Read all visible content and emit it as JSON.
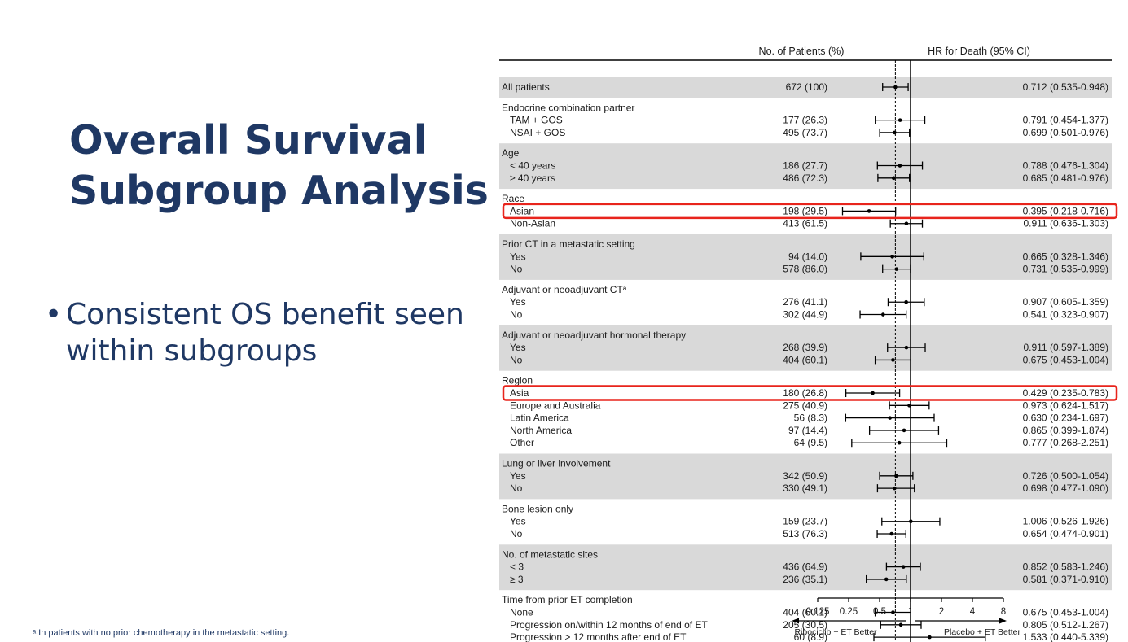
{
  "slide": {
    "title_line1": "Overall Survival",
    "title_line2": "Subgroup Analysis",
    "bullet": "Consistent OS benefit seen within subgroups",
    "footnote": "ᵃ In patients with no prior chemotherapy in the metastatic setting."
  },
  "colors": {
    "title": "#1f3864",
    "band": "#d9d9d9",
    "highlight": "#e8241c",
    "text": "#1a1a1a"
  },
  "chart_data": {
    "type": "forest",
    "headers": {
      "patients": "No. of Patients (%)",
      "hr": "HR for Death (95% CI)"
    },
    "x_axis": {
      "scale": "log",
      "ticks": [
        0.125,
        0.25,
        0.5,
        1,
        2,
        4,
        8
      ],
      "tick_labels": [
        "0.125",
        "0.25",
        "0.5",
        "1",
        "2",
        "4",
        "8"
      ],
      "reference_line": 1,
      "overall_dashed_line": 0.712
    },
    "favors_left": "Ribociclib + ET Better",
    "favors_right": "Placebo + ET Better",
    "groups": [
      {
        "label": "",
        "shaded": true,
        "rows": [
          {
            "label": "All patients",
            "n": "672 (100)",
            "hr": 0.712,
            "lo": 0.535,
            "hi": 0.948,
            "ci_text": "0.712 (0.535-0.948)"
          }
        ]
      },
      {
        "label": "Endocrine combination partner",
        "shaded": false,
        "rows": [
          {
            "label": "TAM + GOS",
            "n": "177 (26.3)",
            "hr": 0.791,
            "lo": 0.454,
            "hi": 1.377,
            "ci_text": "0.791 (0.454-1.377)"
          },
          {
            "label": "NSAI + GOS",
            "n": "495 (73.7)",
            "hr": 0.699,
            "lo": 0.501,
            "hi": 0.976,
            "ci_text": "0.699 (0.501-0.976)"
          }
        ]
      },
      {
        "label": "Age",
        "shaded": true,
        "rows": [
          {
            "label": "< 40 years",
            "n": "186 (27.7)",
            "hr": 0.788,
            "lo": 0.476,
            "hi": 1.304,
            "ci_text": "0.788 (0.476-1.304)"
          },
          {
            "label": "≥ 40 years",
            "n": "486 (72.3)",
            "hr": 0.685,
            "lo": 0.481,
            "hi": 0.976,
            "ci_text": "0.685 (0.481-0.976)"
          }
        ]
      },
      {
        "label": "Race",
        "shaded": false,
        "rows": [
          {
            "label": "Asian",
            "n": "198 (29.5)",
            "hr": 0.395,
            "lo": 0.218,
            "hi": 0.716,
            "ci_text": "0.395 (0.218-0.716)",
            "highlight": true
          },
          {
            "label": "Non-Asian",
            "n": "413 (61.5)",
            "hr": 0.911,
            "lo": 0.636,
            "hi": 1.303,
            "ci_text": "0.911 (0.636-1.303)"
          }
        ]
      },
      {
        "label": "Prior CT in a metastatic setting",
        "shaded": true,
        "rows": [
          {
            "label": "Yes",
            "n": "94 (14.0)",
            "hr": 0.665,
            "lo": 0.328,
            "hi": 1.346,
            "ci_text": "0.665 (0.328-1.346)"
          },
          {
            "label": "No",
            "n": "578 (86.0)",
            "hr": 0.731,
            "lo": 0.535,
            "hi": 0.999,
            "ci_text": "0.731 (0.535-0.999)"
          }
        ]
      },
      {
        "label": "Adjuvant or neoadjuvant CTᵃ",
        "shaded": false,
        "rows": [
          {
            "label": "Yes",
            "n": "276 (41.1)",
            "hr": 0.907,
            "lo": 0.605,
            "hi": 1.359,
            "ci_text": "0.907 (0.605-1.359)"
          },
          {
            "label": "No",
            "n": "302 (44.9)",
            "hr": 0.541,
            "lo": 0.323,
            "hi": 0.907,
            "ci_text": "0.541 (0.323-0.907)"
          }
        ]
      },
      {
        "label": "Adjuvant or neoadjuvant hormonal therapy",
        "shaded": true,
        "rows": [
          {
            "label": "Yes",
            "n": "268 (39.9)",
            "hr": 0.911,
            "lo": 0.597,
            "hi": 1.389,
            "ci_text": "0.911 (0.597-1.389)"
          },
          {
            "label": "No",
            "n": "404 (60.1)",
            "hr": 0.675,
            "lo": 0.453,
            "hi": 1.004,
            "ci_text": "0.675 (0.453-1.004)"
          }
        ]
      },
      {
        "label": "Region",
        "shaded": false,
        "rows": [
          {
            "label": "Asia",
            "n": "180 (26.8)",
            "hr": 0.429,
            "lo": 0.235,
            "hi": 0.783,
            "ci_text": "0.429 (0.235-0.783)",
            "highlight": true
          },
          {
            "label": "Europe and Australia",
            "n": "275 (40.9)",
            "hr": 0.973,
            "lo": 0.624,
            "hi": 1.517,
            "ci_text": "0.973 (0.624-1.517)"
          },
          {
            "label": "Latin America",
            "n": "56 (8.3)",
            "hr": 0.63,
            "lo": 0.234,
            "hi": 1.697,
            "ci_text": "0.630 (0.234-1.697)"
          },
          {
            "label": "North America",
            "n": "97 (14.4)",
            "hr": 0.865,
            "lo": 0.399,
            "hi": 1.874,
            "ci_text": "0.865 (0.399-1.874)"
          },
          {
            "label": "Other",
            "n": "64 (9.5)",
            "hr": 0.777,
            "lo": 0.268,
            "hi": 2.251,
            "ci_text": "0.777 (0.268-2.251)"
          }
        ]
      },
      {
        "label": "Lung or liver involvement",
        "shaded": true,
        "rows": [
          {
            "label": "Yes",
            "n": "342 (50.9)",
            "hr": 0.726,
            "lo": 0.5,
            "hi": 1.054,
            "ci_text": "0.726 (0.500-1.054)"
          },
          {
            "label": "No",
            "n": "330 (49.1)",
            "hr": 0.698,
            "lo": 0.477,
            "hi": 1.09,
            "ci_text": "0.698 (0.477-1.090)"
          }
        ]
      },
      {
        "label": "Bone lesion only",
        "shaded": false,
        "rows": [
          {
            "label": "Yes",
            "n": "159 (23.7)",
            "hr": 1.006,
            "lo": 0.526,
            "hi": 1.926,
            "ci_text": "1.006 (0.526-1.926)"
          },
          {
            "label": "No",
            "n": "513 (76.3)",
            "hr": 0.654,
            "lo": 0.474,
            "hi": 0.901,
            "ci_text": "0.654 (0.474-0.901)"
          }
        ]
      },
      {
        "label": "No. of metastatic sites",
        "shaded": true,
        "rows": [
          {
            "label": "< 3",
            "n": "436 (64.9)",
            "hr": 0.852,
            "lo": 0.583,
            "hi": 1.246,
            "ci_text": "0.852 (0.583-1.246)"
          },
          {
            "label": "≥ 3",
            "n": "236 (35.1)",
            "hr": 0.581,
            "lo": 0.371,
            "hi": 0.91,
            "ci_text": "0.581 (0.371-0.910)"
          }
        ]
      },
      {
        "label": "Time from prior ET completion",
        "shaded": false,
        "rows": [
          {
            "label": "None",
            "n": "404 (60.1)",
            "hr": 0.675,
            "lo": 0.453,
            "hi": 1.004,
            "ci_text": "0.675 (0.453-1.004)"
          },
          {
            "label": "Progression on/within 12 months of end of ET",
            "n": "205 (30.5)",
            "hr": 0.805,
            "lo": 0.512,
            "hi": 1.267,
            "ci_text": "0.805 (0.512-1.267)"
          },
          {
            "label": "Progression > 12 months after end of ET",
            "n": "60 (8.9)",
            "hr": 1.533,
            "lo": 0.44,
            "hi": 5.339,
            "ci_text": "1.533 (0.440-5.339)"
          }
        ]
      }
    ]
  }
}
